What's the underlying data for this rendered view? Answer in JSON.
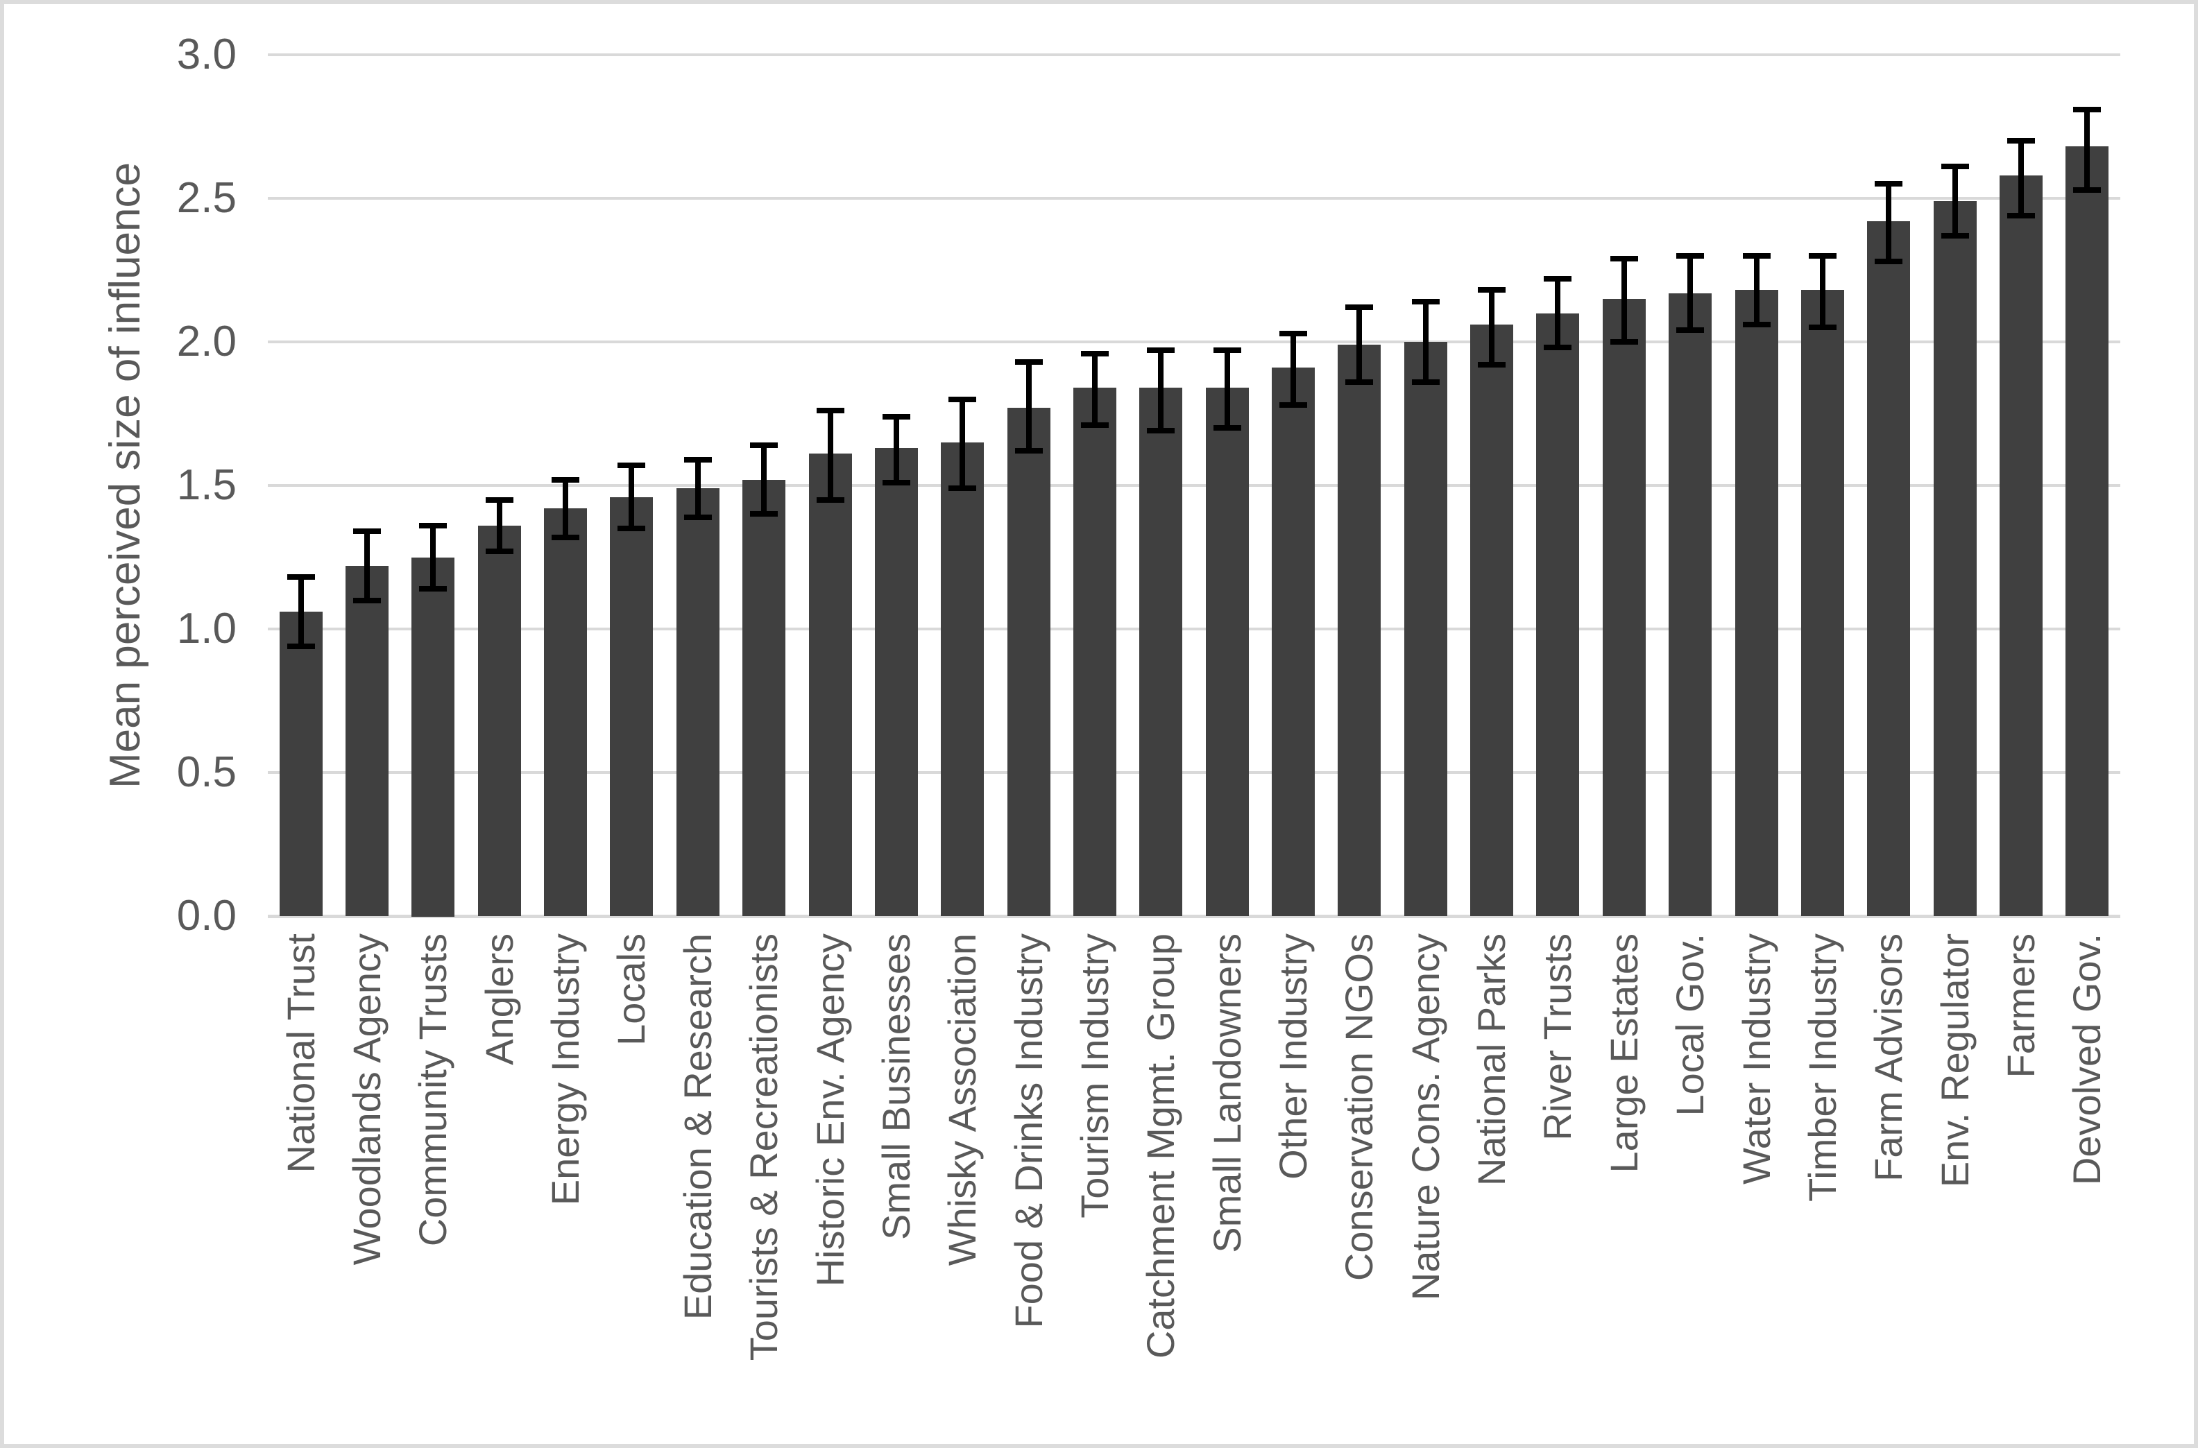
{
  "figure": {
    "background": "#ffffff",
    "border_color": "#dcdcdc"
  },
  "chart_data": {
    "type": "bar",
    "title": "",
    "xlabel": "",
    "ylabel": "Mean perceived size of influence",
    "ylim": [
      0.0,
      3.0
    ],
    "ytick_labels": [
      "3.0",
      "2.5",
      "2.0",
      "1.5",
      "1.0",
      "0.5",
      "0.0"
    ],
    "ytick_values": [
      3.0,
      2.5,
      2.0,
      1.5,
      1.0,
      0.5,
      0.0
    ],
    "grid": true,
    "legend": "none",
    "bar_color": "#404040",
    "gridline_color": "#d9d9d9",
    "error_bar_color": "#000000",
    "categories": [
      "National Trust",
      "Woodlands Agency",
      "Community Trusts",
      "Anglers",
      "Energy Industry",
      "Locals",
      "Education & Research",
      "Tourists & Recreationists",
      "Historic Env. Agency",
      "Small Businesses",
      "Whisky Association",
      "Food & Drinks Industry",
      "Tourism Industry",
      "Catchment Mgmt. Group",
      "Small Landowners",
      "Other Industry",
      "Conservation NGOs",
      "Nature Cons. Agency",
      "National Parks",
      "River Trusts",
      "Large Estates",
      "Local Gov.",
      "Water Industry",
      "Timber Industry",
      "Farm Advisors",
      "Env. Regulator",
      "Farmers",
      "Devolved Gov."
    ],
    "values": [
      1.06,
      1.22,
      1.25,
      1.36,
      1.42,
      1.46,
      1.49,
      1.52,
      1.61,
      1.63,
      1.65,
      1.77,
      1.84,
      1.84,
      1.84,
      1.91,
      1.99,
      2.0,
      2.06,
      2.1,
      2.15,
      2.17,
      2.18,
      2.18,
      2.42,
      2.49,
      2.58,
      2.68
    ],
    "error_low": [
      0.94,
      1.1,
      1.14,
      1.27,
      1.32,
      1.35,
      1.39,
      1.4,
      1.45,
      1.51,
      1.49,
      1.62,
      1.71,
      1.69,
      1.7,
      1.78,
      1.86,
      1.86,
      1.92,
      1.98,
      2.0,
      2.04,
      2.06,
      2.05,
      2.28,
      2.37,
      2.44,
      2.53
    ],
    "error_high": [
      1.18,
      1.34,
      1.36,
      1.45,
      1.52,
      1.57,
      1.59,
      1.64,
      1.76,
      1.74,
      1.8,
      1.93,
      1.96,
      1.97,
      1.97,
      2.03,
      2.12,
      2.14,
      2.18,
      2.22,
      2.29,
      2.3,
      2.3,
      2.3,
      2.55,
      2.61,
      2.7,
      2.81
    ]
  }
}
